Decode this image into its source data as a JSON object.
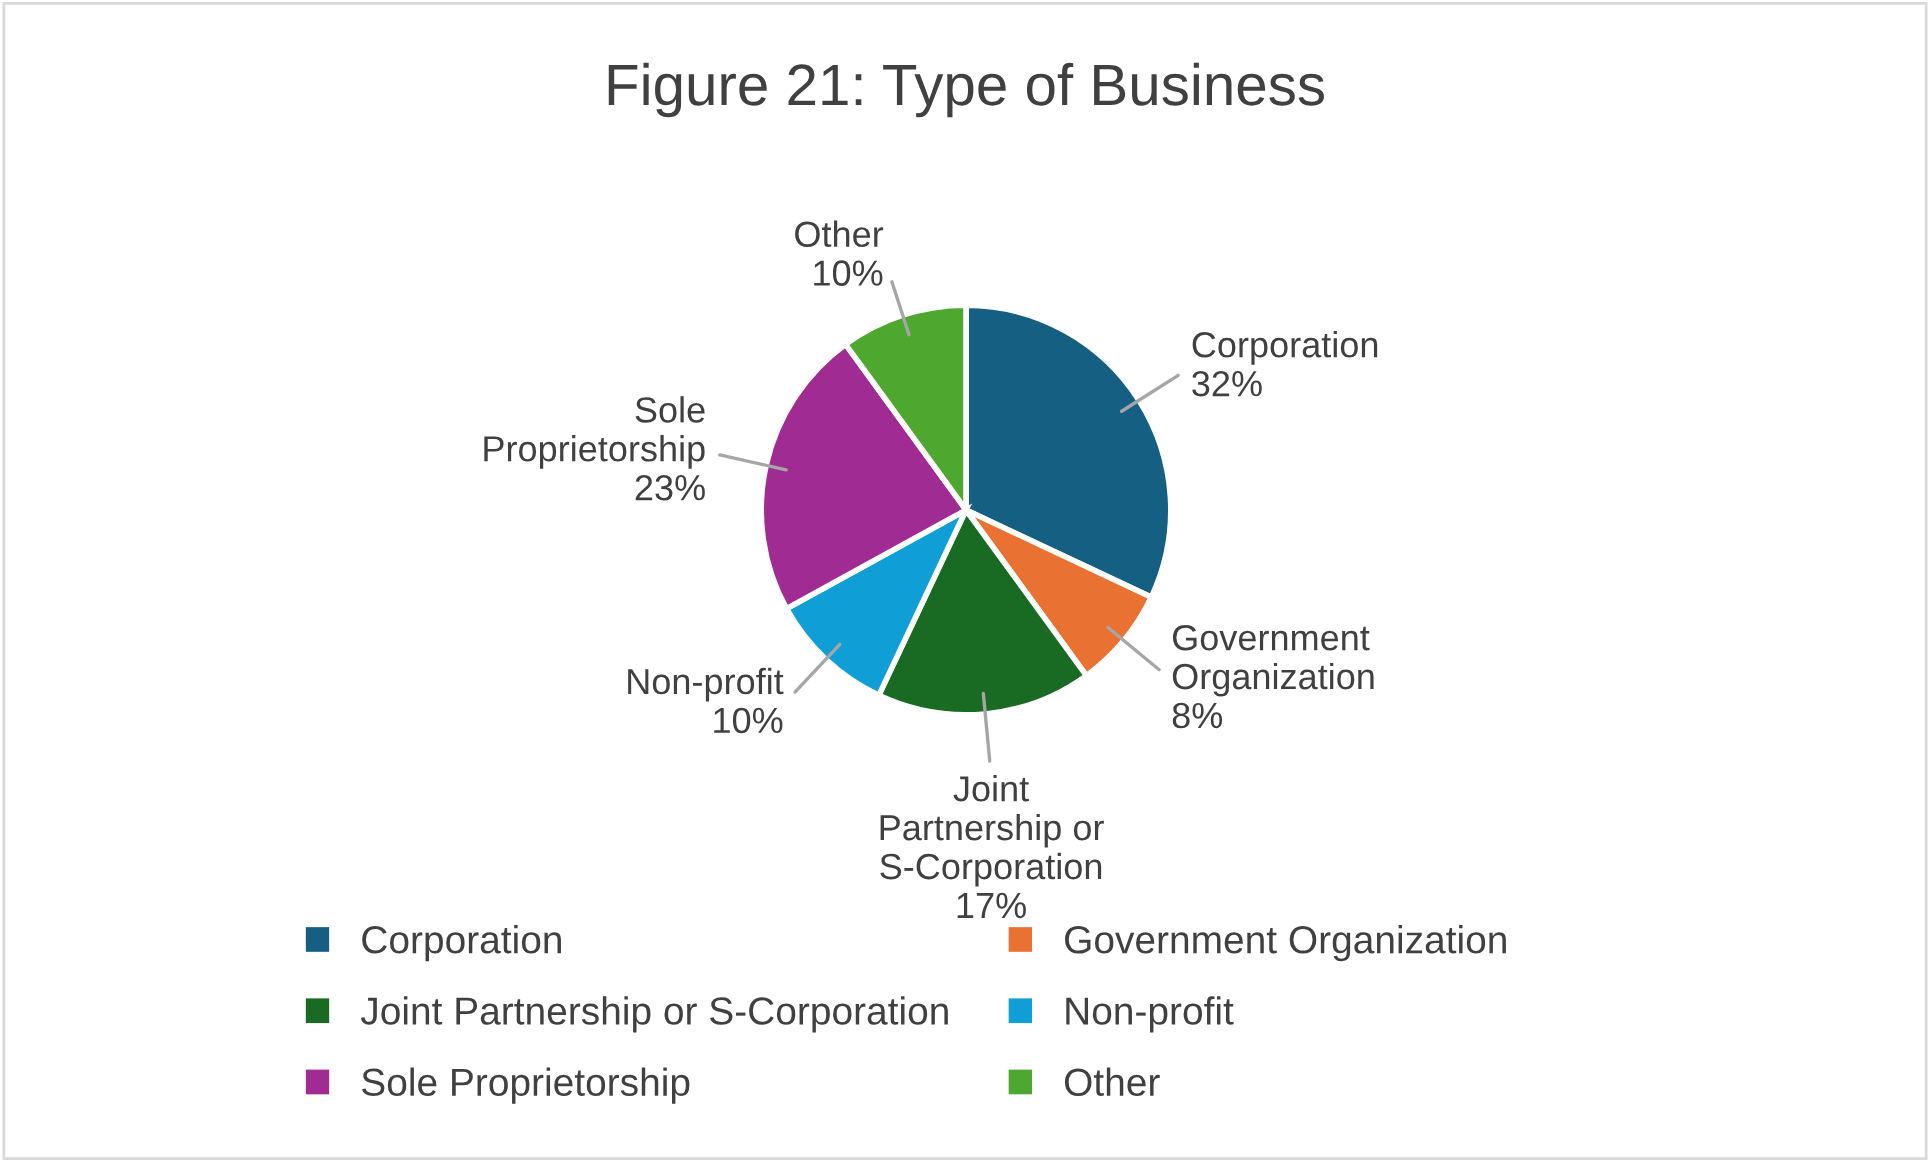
{
  "chart_data": {
    "type": "pie",
    "title": "Figure 21: Type of Business",
    "categories": [
      "Corporation",
      "Government Organization",
      "Joint Partnership or S-Corporation",
      "Non-profit",
      "Sole Proprietorship",
      "Other"
    ],
    "values": [
      32,
      8,
      17,
      10,
      23,
      10
    ],
    "value_labels": [
      "32%",
      "8%",
      "17%",
      "10%",
      "23%",
      "10%"
    ],
    "colors": [
      "#156082",
      "#e97132",
      "#196b24",
      "#0f9ed5",
      "#a02b93",
      "#4ea72e"
    ],
    "legend": "bottom"
  }
}
